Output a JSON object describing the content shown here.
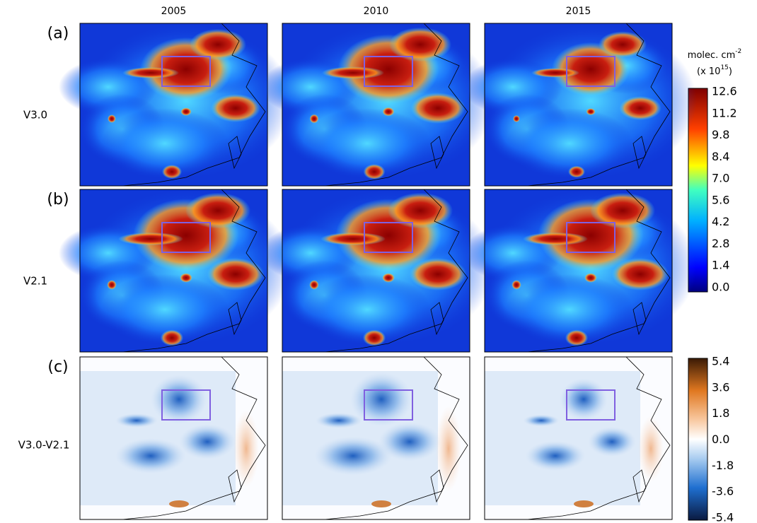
{
  "columns": [
    "2005",
    "2010",
    "2015"
  ],
  "rows": [
    {
      "letter": "(a)",
      "label": "V3.0"
    },
    {
      "letter": "(b)",
      "label": "V2.1"
    },
    {
      "letter": "(c)",
      "label": "V3.0-V2.1"
    }
  ],
  "colorbars": [
    {
      "unit": {
        "text": "molec. cm",
        "sup": "-2"
      },
      "scale": {
        "prefix": "(x 10",
        "sup": "15",
        "suffix": ")"
      },
      "ticks": [
        "12.6",
        "11.2",
        "9.8",
        "8.4",
        "7.0",
        "5.6",
        "4.2",
        "2.8",
        "1.4",
        "0.0"
      ]
    },
    {
      "ticks": [
        "5.4",
        "3.6",
        "1.8",
        "0.0",
        "-1.8",
        "-3.6",
        "-5.4"
      ]
    }
  ]
}
